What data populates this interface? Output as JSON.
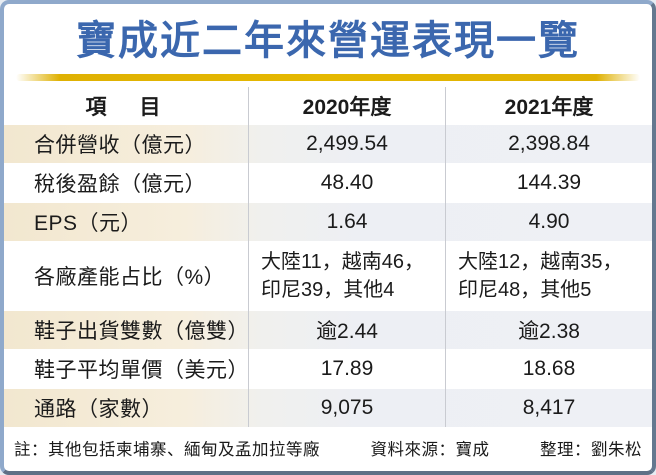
{
  "title": "寶成近二年來營運表現一覽",
  "table": {
    "headers": [
      "項　目",
      "2020年度",
      "2021年度"
    ],
    "rows": [
      {
        "label": "合併營收（億元）",
        "y2020": "2,499.54",
        "y2021": "2,398.84"
      },
      {
        "label": "稅後盈餘（億元）",
        "y2020": "48.40",
        "y2021": "144.39"
      },
      {
        "label": "EPS（元）",
        "y2020": "1.64",
        "y2021": "4.90"
      },
      {
        "label": "各廠產能占比（%）",
        "y2020": [
          "大陸11，越南46，",
          "印尼39，其他4"
        ],
        "y2021": [
          "大陸12，越南35，",
          "印尼48，其他5"
        ]
      },
      {
        "label": "鞋子出貨雙數（億雙）",
        "y2020": "逾2.44",
        "y2021": "逾2.38"
      },
      {
        "label": "鞋子平均單價（美元）",
        "y2020": "17.89",
        "y2021": "18.68"
      },
      {
        "label": "通路（家數）",
        "y2020": "9,075",
        "y2021": "8,417"
      }
    ]
  },
  "footer": {
    "note": "註：其他包括柬埔寨、緬甸及孟加拉等廠",
    "source": "資料來源：寶成",
    "editor": "整理：劉朱松"
  },
  "colors": {
    "title_blue": "#3b67ae",
    "gold_rule": "#dfb103",
    "highlight_cream": "#f2e7cf",
    "highlight_bluegray": "#eef0f5",
    "frame_border": "#8fa9cb",
    "divider_gray": "#c9cbd1",
    "text": "#1b1b1b"
  }
}
